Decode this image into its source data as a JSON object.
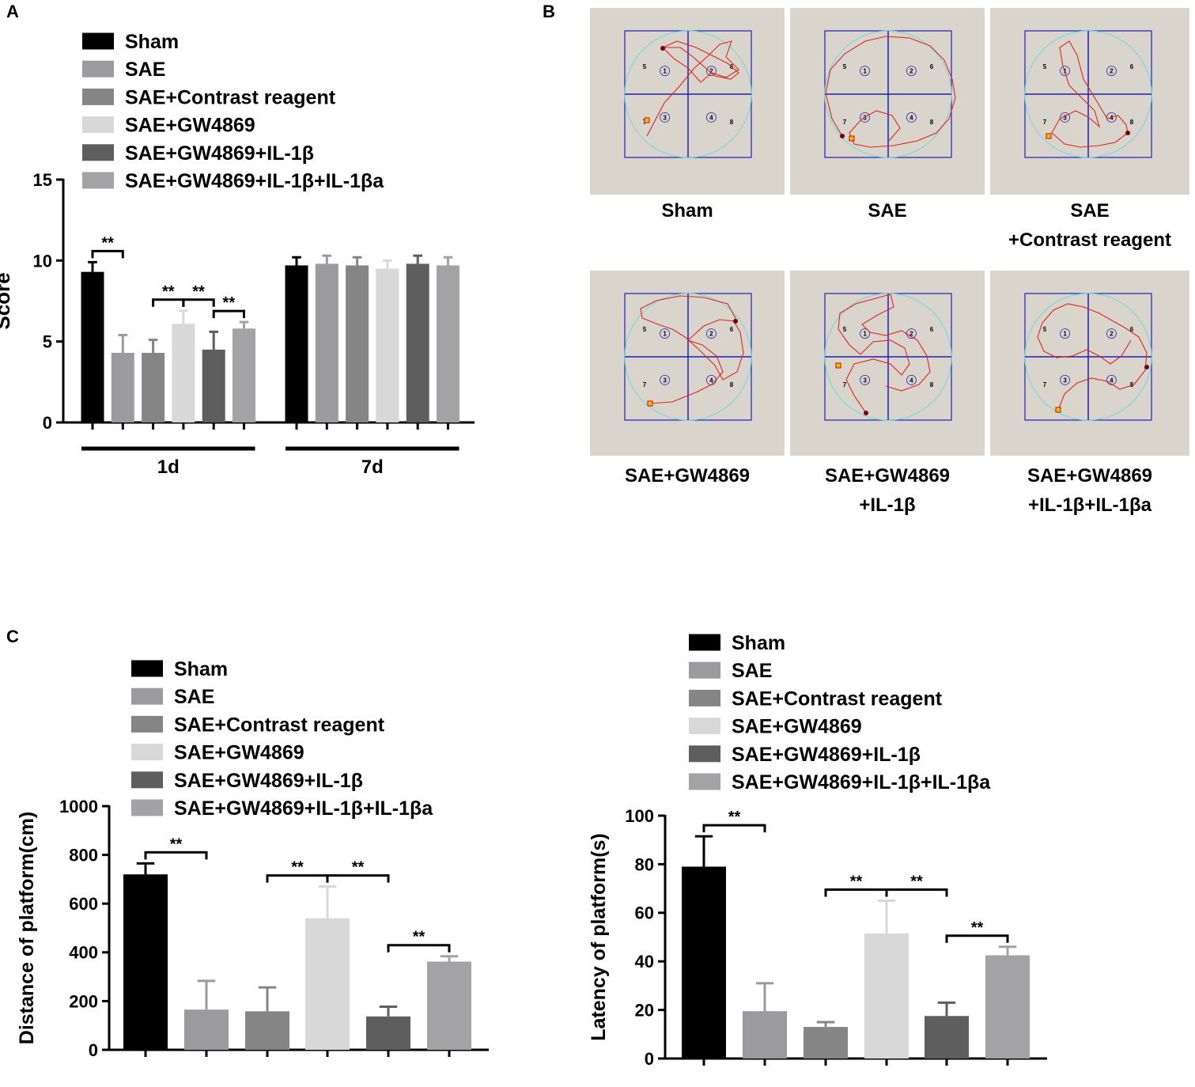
{
  "colors": {
    "sham": "#000000",
    "sae": "#9b9b9f",
    "sae_contrast": "#858585",
    "sae_gw": "#d8d8d8",
    "sae_gw_il": "#5e5e5e",
    "sae_gw_il_ila": "#a3a3a5",
    "maze_bg": "#d9d5cc",
    "maze_grid": "#1f1fb8",
    "maze_circle": "#7fd7dc",
    "maze_path": "#e0241b"
  },
  "legend": [
    "Sham",
    "SAE",
    "SAE+Contrast reagent",
    "SAE+GW4869",
    "SAE+GW4869+IL-1β",
    "SAE+GW4869+IL-1β+IL-1βa"
  ],
  "panels": {
    "a": "A",
    "b": "B",
    "c": "C"
  },
  "chart_data": [
    {
      "type": "bar",
      "title": "",
      "ylabel": "Score",
      "xlabel": "",
      "ylim": [
        0,
        15
      ],
      "yticks": [
        0,
        5,
        10,
        15
      ],
      "groups": [
        "1d",
        "7d"
      ],
      "series": [
        {
          "name": "Sham",
          "values": [
            9.3,
            9.7
          ],
          "errors": [
            0.6,
            0.5
          ]
        },
        {
          "name": "SAE",
          "values": [
            4.3,
            9.8
          ],
          "errors": [
            1.1,
            0.5
          ]
        },
        {
          "name": "SAE+Contrast reagent",
          "values": [
            4.3,
            9.7
          ],
          "errors": [
            0.8,
            0.5
          ]
        },
        {
          "name": "SAE+GW4869",
          "values": [
            6.1,
            9.5
          ],
          "errors": [
            0.8,
            0.5
          ]
        },
        {
          "name": "SAE+GW4869+IL-1β",
          "values": [
            4.5,
            9.8
          ],
          "errors": [
            1.1,
            0.5
          ]
        },
        {
          "name": "SAE+GW4869+IL-1β+IL-1βa",
          "values": [
            5.8,
            9.7
          ],
          "errors": [
            0.4,
            0.5
          ]
        }
      ],
      "significance": [
        {
          "from": 0,
          "to": 1,
          "label": "**"
        },
        {
          "from": 2,
          "to": 3,
          "label": "**"
        },
        {
          "from": 3,
          "to": 4,
          "label": "**"
        },
        {
          "from": 4,
          "to": 5,
          "label": "**"
        }
      ]
    },
    {
      "type": "bar",
      "title": "",
      "ylabel": "Distance of platform(cm)",
      "xlabel": "",
      "ylim": [
        0,
        1000
      ],
      "yticks": [
        0,
        200,
        400,
        600,
        800,
        1000
      ],
      "categories": [
        "Sham",
        "SAE",
        "SAE+Contrast reagent",
        "SAE+GW4869",
        "SAE+GW4869+IL-1β",
        "SAE+GW4869+IL-1β+IL-1βa"
      ],
      "values": [
        720,
        165,
        158,
        540,
        137,
        362
      ],
      "errors": [
        45,
        118,
        98,
        130,
        40,
        22
      ],
      "significance": [
        {
          "from": 0,
          "to": 1,
          "label": "**"
        },
        {
          "from": 2,
          "to": 3,
          "label": "**"
        },
        {
          "from": 3,
          "to": 4,
          "label": "**"
        },
        {
          "from": 4,
          "to": 5,
          "label": "**"
        }
      ]
    },
    {
      "type": "bar",
      "title": "",
      "ylabel": "Latency of platform(s)",
      "xlabel": "",
      "ylim": [
        0,
        100
      ],
      "yticks": [
        0,
        20,
        40,
        60,
        80,
        100
      ],
      "categories": [
        "Sham",
        "SAE",
        "SAE+Contrast reagent",
        "SAE+GW4869",
        "SAE+GW4869+IL-1β",
        "SAE+GW4869+IL-1β+IL-1βa"
      ],
      "values": [
        79,
        19.5,
        13,
        51.5,
        17.5,
        42.5
      ],
      "errors": [
        12.5,
        11.5,
        2,
        13.5,
        5.5,
        3.5
      ],
      "significance": [
        {
          "from": 0,
          "to": 1,
          "label": "**"
        },
        {
          "from": 2,
          "to": 3,
          "label": "**"
        },
        {
          "from": 3,
          "to": 4,
          "label": "**"
        },
        {
          "from": 4,
          "to": 5,
          "label": "**"
        }
      ]
    }
  ],
  "maze": {
    "quadrant_labels": [
      "1",
      "2",
      "3",
      "4"
    ],
    "zone_labels": [
      "5",
      "6",
      "7",
      "8"
    ],
    "tiles": [
      {
        "caption": [
          "Sham"
        ]
      },
      {
        "caption": [
          "SAE"
        ]
      },
      {
        "caption": [
          "SAE",
          "+Contrast reagent"
        ]
      },
      {
        "caption": [
          "SAE+GW4869"
        ]
      },
      {
        "caption": [
          "SAE+GW4869",
          "+IL-1β"
        ]
      },
      {
        "caption": [
          "SAE+GW4869",
          "+IL-1β+IL-1βa"
        ]
      }
    ]
  }
}
